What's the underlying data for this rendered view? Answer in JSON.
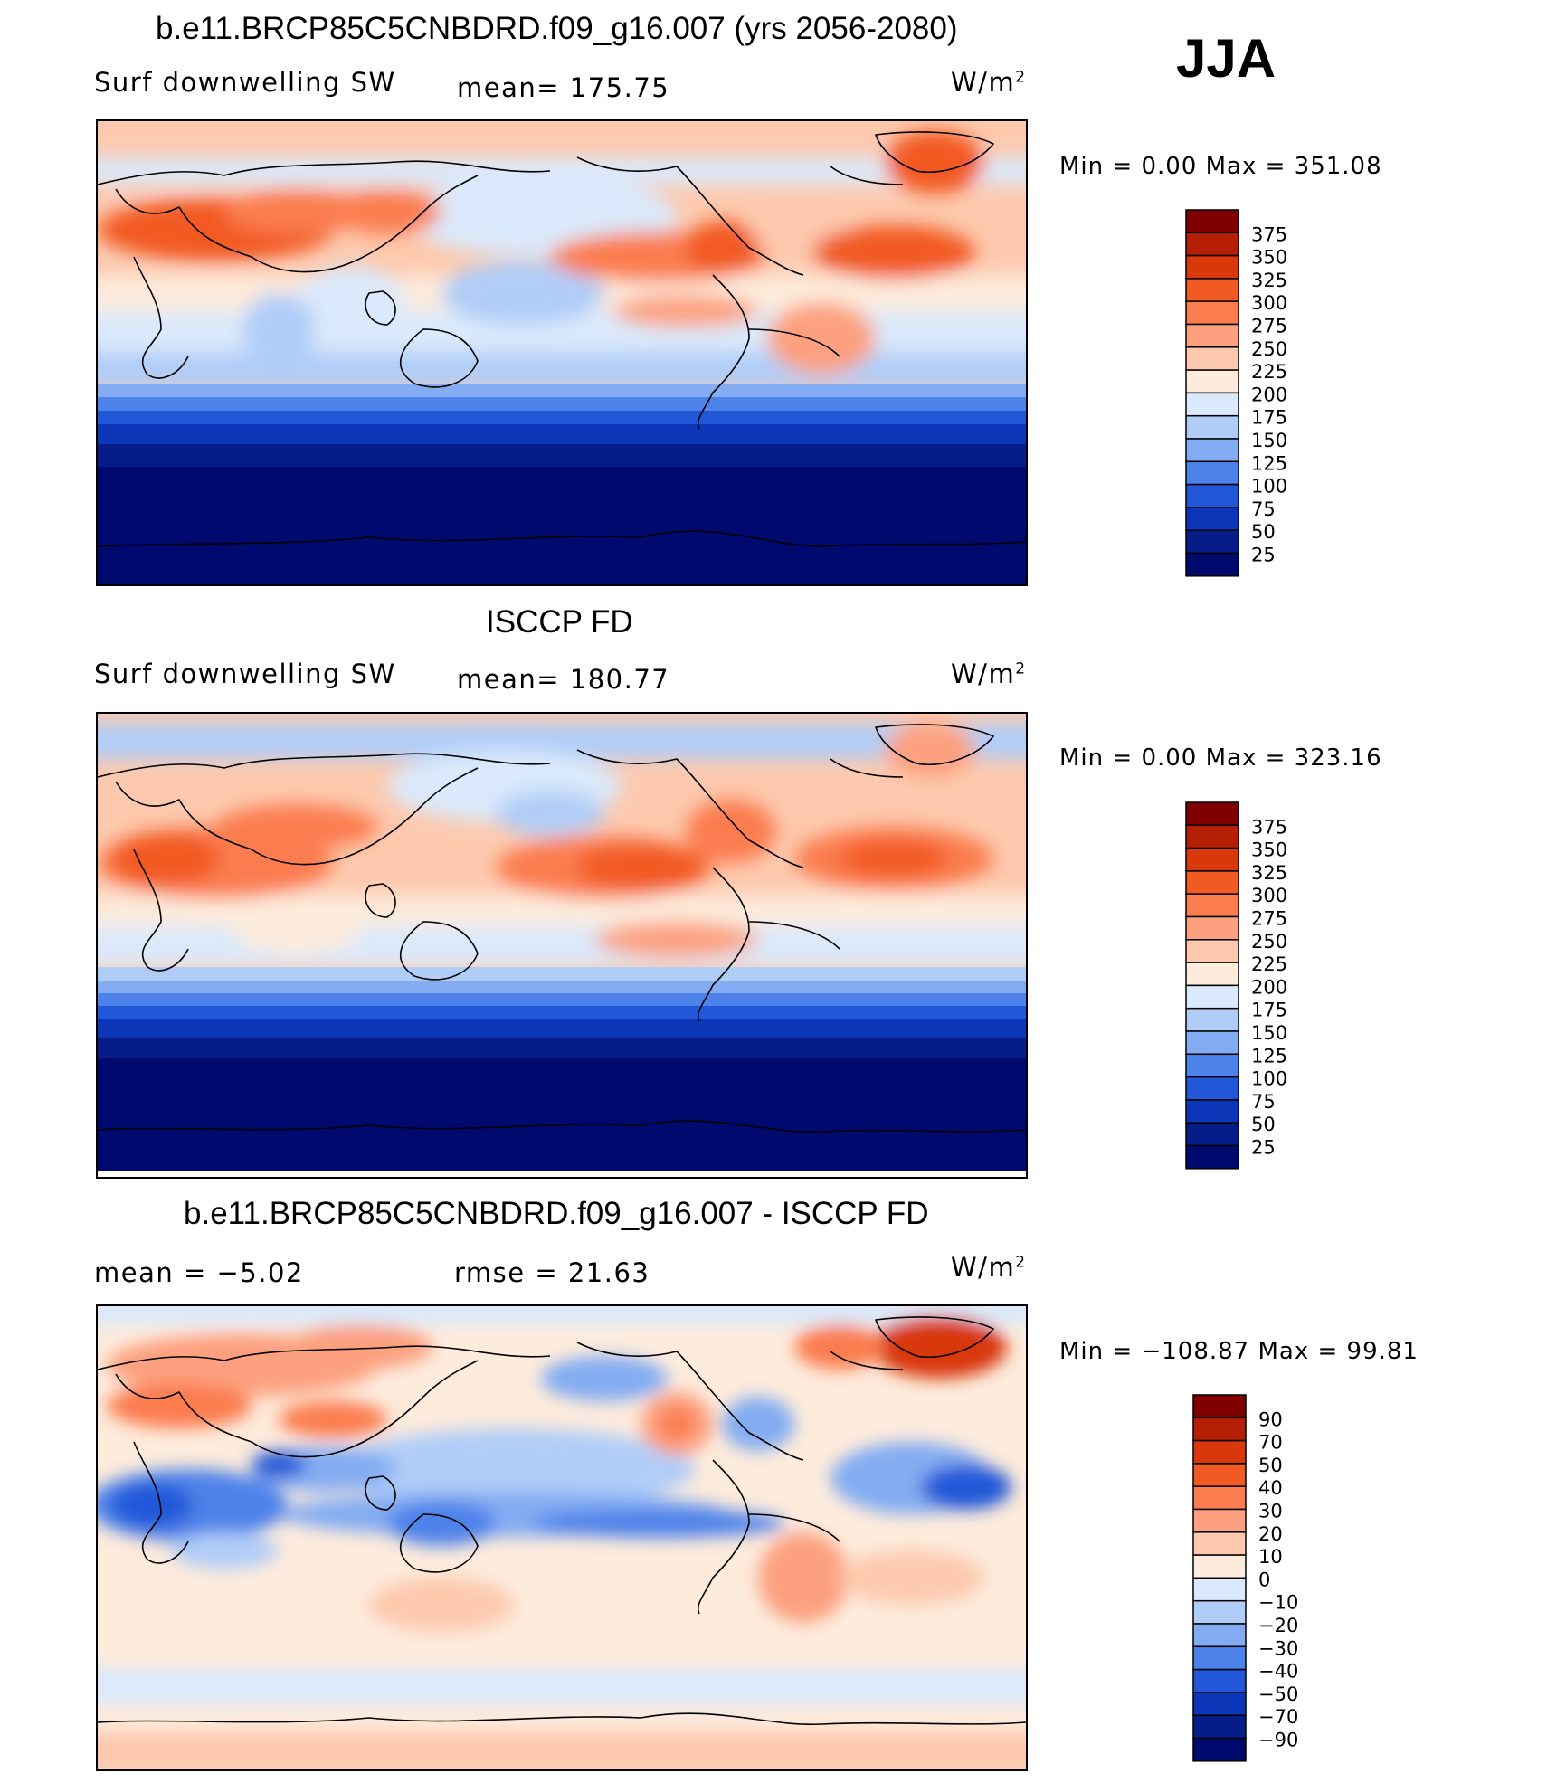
{
  "season": "JJA",
  "panels": [
    {
      "title": "b.e11.BRCP85C5CNBDRD.f09_g16.007 (yrs 2056-2080)",
      "left_label": "Surf  downwelling SW",
      "stat1": "mean=  175.75",
      "units_main": "W/m",
      "units_sup": "2",
      "minmax": "Min  =      0.00  Max  =  351.08",
      "colorbar": {
        "levels": [
          "375",
          "350",
          "325",
          "300",
          "275",
          "250",
          "225",
          "200",
          "175",
          "150",
          "125",
          "100",
          "75",
          "50",
          "25"
        ],
        "colors": [
          "#800000",
          "#b51f06",
          "#d9380c",
          "#f25a24",
          "#fb7d4f",
          "#fca07f",
          "#fdc9ae",
          "#fdebdc",
          "#dae9fb",
          "#b0cdf8",
          "#83acf2",
          "#4d82ea",
          "#2258d8",
          "#0b36b7",
          "#061c89",
          "#000a6e"
        ]
      }
    },
    {
      "title": "ISCCP FD",
      "left_label": "Surf  downwelling SW",
      "stat1": "mean=  180.77",
      "units_main": "W/m",
      "units_sup": "2",
      "minmax": "Min  =      0.00  Max  =  323.16",
      "colorbar": {
        "levels": [
          "375",
          "350",
          "325",
          "300",
          "275",
          "250",
          "225",
          "200",
          "175",
          "150",
          "125",
          "100",
          "75",
          "50",
          "25"
        ],
        "colors": [
          "#800000",
          "#b51f06",
          "#d9380c",
          "#f25a24",
          "#fb7d4f",
          "#fca07f",
          "#fdc9ae",
          "#fdebdc",
          "#dae9fb",
          "#b0cdf8",
          "#83acf2",
          "#4d82ea",
          "#2258d8",
          "#0b36b7",
          "#061c89",
          "#000a6e"
        ]
      }
    },
    {
      "title": "b.e11.BRCP85C5CNBDRD.f09_g16.007 - ISCCP FD",
      "left_label": "mean  =    −5.02",
      "stat1": "rmse  =    21.63",
      "units_main": "W/m",
      "units_sup": "2",
      "minmax": "Min  =  −108.87  Max  =    99.81",
      "colorbar": {
        "levels": [
          "90",
          "70",
          "50",
          "40",
          "30",
          "20",
          "10",
          "0",
          "−10",
          "−20",
          "−30",
          "−40",
          "−50",
          "−70",
          "−90"
        ],
        "colors": [
          "#800000",
          "#b51f06",
          "#d9380c",
          "#f25a24",
          "#fb7d4f",
          "#fca07f",
          "#fdc9ae",
          "#fdebdc",
          "#dae9fb",
          "#b0cdf8",
          "#83acf2",
          "#4d82ea",
          "#2258d8",
          "#0b36b7",
          "#061c89",
          "#000a6e"
        ]
      }
    }
  ]
}
